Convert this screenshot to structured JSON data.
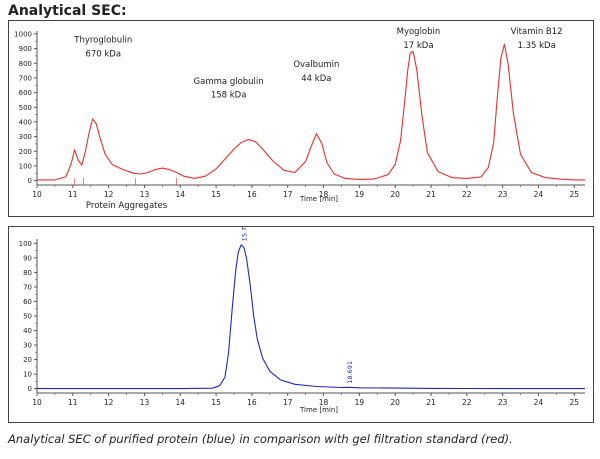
{
  "page": {
    "heading": "Analytical SEC:",
    "caption": "Analytical SEC of purified protein (blue) in comparison with gel filtration standard (red)."
  },
  "chart_data": [
    {
      "type": "line",
      "title": "",
      "xlabel": "Time [min]",
      "ylabel": "",
      "xlim": [
        10,
        25.3
      ],
      "ylim": [
        -30,
        1020
      ],
      "xticks": [
        10,
        11,
        12,
        13,
        14,
        15,
        16,
        17,
        18,
        19,
        20,
        21,
        22,
        23,
        24,
        25
      ],
      "yticks": [
        0,
        100,
        200,
        300,
        400,
        500,
        600,
        700,
        800,
        900,
        1000
      ],
      "grid": false,
      "color": "#e8302c",
      "series": [
        {
          "x": [
            10.0,
            10.5,
            10.8,
            10.95,
            11.05,
            11.15,
            11.25,
            11.35,
            11.45,
            11.55,
            11.65,
            11.75,
            11.9,
            12.1,
            12.4,
            12.7,
            12.9,
            13.1,
            13.3,
            13.5,
            13.7,
            13.9,
            14.1,
            14.4,
            14.7,
            15.0,
            15.3,
            15.5,
            15.7,
            15.9,
            16.1,
            16.3,
            16.6,
            16.9,
            17.2,
            17.5,
            17.65,
            17.8,
            17.95,
            18.1,
            18.3,
            18.6,
            19.0,
            19.4,
            19.8,
            20.0,
            20.15,
            20.25,
            20.35,
            20.42,
            20.5,
            20.6,
            20.75,
            20.9,
            21.2,
            21.6,
            22.0,
            22.4,
            22.6,
            22.75,
            22.85,
            22.95,
            23.05,
            23.15,
            23.3,
            23.5,
            23.8,
            24.2,
            24.6,
            25.0,
            25.3
          ],
          "y": [
            5,
            5,
            25,
            110,
            210,
            140,
            105,
            200,
            320,
            420,
            390,
            300,
            180,
            110,
            75,
            50,
            45,
            55,
            75,
            85,
            75,
            55,
            30,
            15,
            30,
            80,
            160,
            215,
            260,
            280,
            265,
            215,
            130,
            70,
            55,
            130,
            230,
            320,
            255,
            120,
            45,
            15,
            8,
            10,
            40,
            110,
            270,
            500,
            750,
            870,
            880,
            760,
            440,
            190,
            60,
            20,
            15,
            25,
            90,
            260,
            560,
            830,
            930,
            800,
            460,
            180,
            55,
            20,
            10,
            5,
            5
          ]
        }
      ],
      "annotations": [
        {
          "text": "Thyroglobulin",
          "x": 11.85,
          "y": 940
        },
        {
          "text": "670 kDa",
          "x": 11.85,
          "y": 845
        },
        {
          "text": "Gamma globulin",
          "x": 15.35,
          "y": 660
        },
        {
          "text": "158 kDa",
          "x": 15.35,
          "y": 565
        },
        {
          "text": "Ovalbumin",
          "x": 17.8,
          "y": 775
        },
        {
          "text": "44 kDa",
          "x": 17.8,
          "y": 680
        },
        {
          "text": "Myoglobin",
          "x": 20.65,
          "y": 1000
        },
        {
          "text": "17 kDa",
          "x": 20.65,
          "y": 905
        },
        {
          "text": "Vitamin B12",
          "x": 23.95,
          "y": 1000
        },
        {
          "text": "1.35 kDa",
          "x": 23.95,
          "y": 905
        },
        {
          "text": "Protein Aggregates",
          "x": 12.5,
          "y": -120
        }
      ]
    },
    {
      "type": "line",
      "title": "",
      "xlabel": "Time [min]",
      "ylabel": "",
      "xlim": [
        10,
        25.3
      ],
      "ylim": [
        -3,
        103
      ],
      "xticks": [
        10,
        11,
        12,
        13,
        14,
        15,
        16,
        17,
        18,
        19,
        20,
        21,
        22,
        23,
        24,
        25
      ],
      "yticks": [
        0,
        10,
        20,
        30,
        40,
        50,
        60,
        70,
        80,
        90,
        100
      ],
      "grid": false,
      "color": "#2227c6",
      "series": [
        {
          "x": [
            10.0,
            14.0,
            14.9,
            15.1,
            15.25,
            15.35,
            15.45,
            15.55,
            15.62,
            15.7,
            15.78,
            15.85,
            15.95,
            16.05,
            16.15,
            16.3,
            16.5,
            16.8,
            17.2,
            17.8,
            18.5,
            18.69,
            19.0,
            20.0,
            21.0,
            22.0,
            23.0,
            24.0,
            25.3
          ],
          "y": [
            0,
            0,
            0.3,
            2,
            8,
            25,
            55,
            82,
            94,
            99,
            97,
            90,
            72,
            50,
            34,
            21,
            12,
            6,
            3,
            1.5,
            0.8,
            0.9,
            0.6,
            0.4,
            0.2,
            0.1,
            0,
            0,
            0
          ]
        }
      ],
      "peak_labels": [
        {
          "text": "15.740",
          "x": 15.74,
          "y": 100
        },
        {
          "text": "18.691",
          "x": 18.69,
          "y": 2
        }
      ]
    }
  ]
}
